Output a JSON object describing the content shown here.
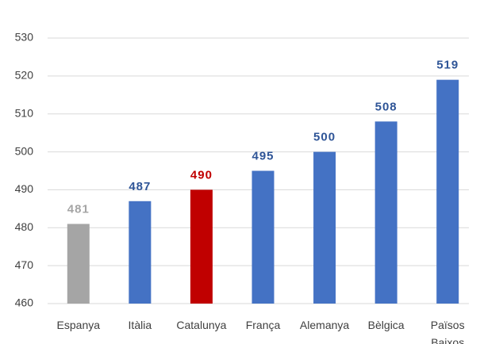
{
  "chart_data": {
    "type": "bar",
    "categories": [
      "Espanya",
      "Itàlia",
      "Catalunya",
      "França",
      "Alemanya",
      "Bèlgica",
      "Països Baixos"
    ],
    "values": [
      481,
      487,
      490,
      495,
      500,
      508,
      519
    ],
    "colors": [
      "#a5a5a5",
      "#4472c4",
      "#c00000",
      "#4472c4",
      "#4472c4",
      "#4472c4",
      "#4472c4"
    ],
    "label_colors": [
      "#a5a5a5",
      "#2f5597",
      "#c00000",
      "#2f5597",
      "#2f5597",
      "#2f5597",
      "#2f5597"
    ],
    "ylim": [
      460,
      530
    ],
    "yticks": [
      460,
      470,
      480,
      490,
      500,
      510,
      520,
      530
    ],
    "grid": true
  }
}
